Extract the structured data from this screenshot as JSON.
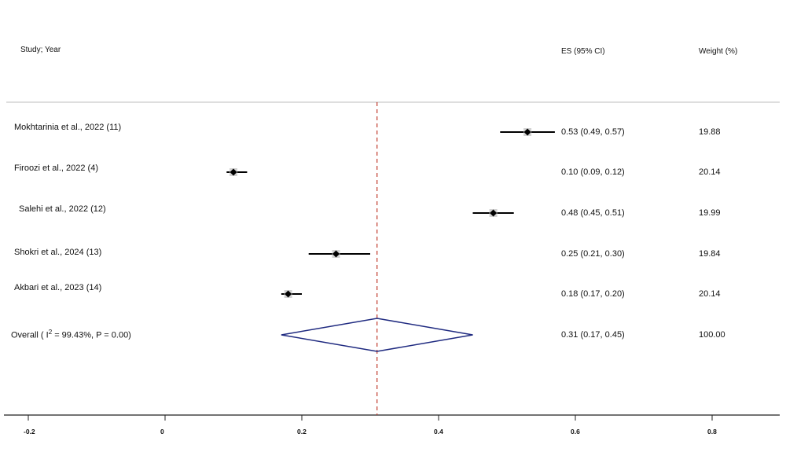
{
  "headers": {
    "study": "Study; Year",
    "es": "ES (95% CI)",
    "weight": "Weight (%)"
  },
  "chart_data": {
    "type": "forest",
    "x_ticks": [
      -0.2,
      0,
      0.2,
      0.4,
      0.6,
      0.8
    ],
    "x_tick_labels": [
      "-0.2",
      "0",
      "0.2",
      "0.4",
      "0.6",
      "0.8"
    ],
    "xlim": [
      -0.2,
      0.8
    ],
    "reference_line": 0.31,
    "studies": [
      {
        "label": "Mokhtarinia et al., 2022 (11)",
        "es": 0.53,
        "lo": 0.49,
        "hi": 0.57,
        "es_text": "0.53 (0.49, 0.57)",
        "weight": "19.88"
      },
      {
        "label": "Firoozi et al., 2022 (4)",
        "es": 0.1,
        "lo": 0.09,
        "hi": 0.12,
        "es_text": "0.10 (0.09, 0.12)",
        "weight": "20.14"
      },
      {
        "label": "Salehi et al., 2022 (12)",
        "es": 0.48,
        "lo": 0.45,
        "hi": 0.51,
        "es_text": "0.48 (0.45, 0.51)",
        "weight": "19.99"
      },
      {
        "label": "Shokri et al., 2024 (13)",
        "es": 0.25,
        "lo": 0.21,
        "hi": 0.3,
        "es_text": "0.25 (0.21, 0.30)",
        "weight": "19.84"
      },
      {
        "label": "Akbari et al., 2023 (14)",
        "es": 0.18,
        "lo": 0.17,
        "hi": 0.2,
        "es_text": "0.18 (0.17, 0.20)",
        "weight": "20.14"
      }
    ],
    "overall": {
      "label_prefix": "Overall  (  I",
      "label_sup": "2",
      "label_suffix": " = 99.43%, P = 0.00)",
      "es": 0.31,
      "lo": 0.17,
      "hi": 0.45,
      "es_text": "0.31 (0.17, 0.45)",
      "weight": "100.00"
    },
    "colors": {
      "diamond": "#1f2a80",
      "reference_line": "#c0392b",
      "ci_line": "#000000"
    }
  }
}
